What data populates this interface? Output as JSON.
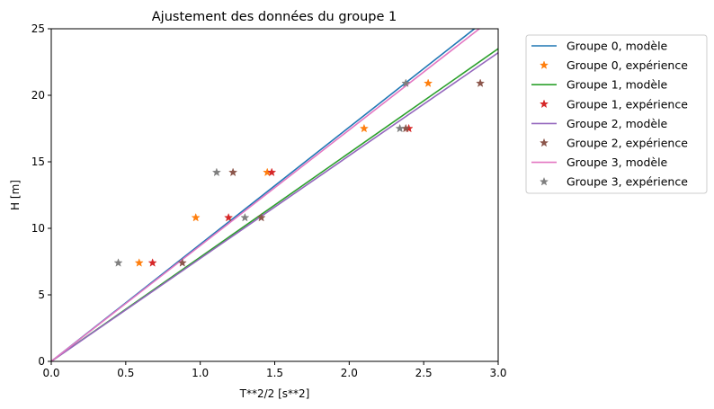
{
  "chart_data": {
    "type": "line",
    "title": "Ajustement des données du groupe 1",
    "xlabel": "T**2/2 [s**2]",
    "ylabel": "H [m]",
    "xlim": [
      0,
      3.0
    ],
    "ylim": [
      0,
      25
    ],
    "x_ticks": [
      "0.0",
      "0.5",
      "1.0",
      "1.5",
      "2.0",
      "2.5",
      "3.0"
    ],
    "y_ticks": [
      "0",
      "5",
      "10",
      "15",
      "20",
      "25"
    ],
    "grid": false,
    "legend_position": "outside upper right",
    "series": [
      {
        "name": "Groupe 0, modèle",
        "kind": "line",
        "color": "#1f77b4",
        "x": [
          0,
          3.0
        ],
        "y": [
          0,
          26.4
        ]
      },
      {
        "name": "Groupe 0, expérience",
        "kind": "scatter",
        "marker": "star",
        "color": "#ff7f0e",
        "x": [
          0.59,
          0.97,
          1.45,
          2.1,
          2.53
        ],
        "y": [
          7.4,
          10.8,
          14.2,
          17.5,
          20.9
        ]
      },
      {
        "name": "Groupe 1, modèle",
        "kind": "line",
        "color": "#2ca02c",
        "x": [
          0,
          3.0
        ],
        "y": [
          0,
          23.5
        ]
      },
      {
        "name": "Groupe 1, expérience",
        "kind": "scatter",
        "marker": "star",
        "color": "#d62728",
        "x": [
          0.68,
          1.19,
          1.48,
          2.4
        ],
        "y": [
          7.4,
          10.8,
          14.2,
          17.5
        ]
      },
      {
        "name": "Groupe 2, modèle",
        "kind": "line",
        "color": "#9467bd",
        "x": [
          0,
          3.0
        ],
        "y": [
          0,
          23.2
        ]
      },
      {
        "name": "Groupe 2, expérience",
        "kind": "scatter",
        "marker": "star",
        "color": "#8c564b",
        "x": [
          0.88,
          1.41,
          1.22,
          2.38,
          2.88
        ],
        "y": [
          7.4,
          10.8,
          14.2,
          17.5,
          20.9
        ]
      },
      {
        "name": "Groupe 3, modèle",
        "kind": "line",
        "color": "#e377c2",
        "x": [
          0,
          3.0
        ],
        "y": [
          0,
          26.1
        ]
      },
      {
        "name": "Groupe 3, expérience",
        "kind": "scatter",
        "marker": "star",
        "color": "#7f7f7f",
        "x": [
          0.45,
          1.3,
          1.11,
          2.34,
          2.38
        ],
        "y": [
          7.4,
          10.8,
          14.2,
          17.5,
          20.9
        ]
      }
    ]
  }
}
